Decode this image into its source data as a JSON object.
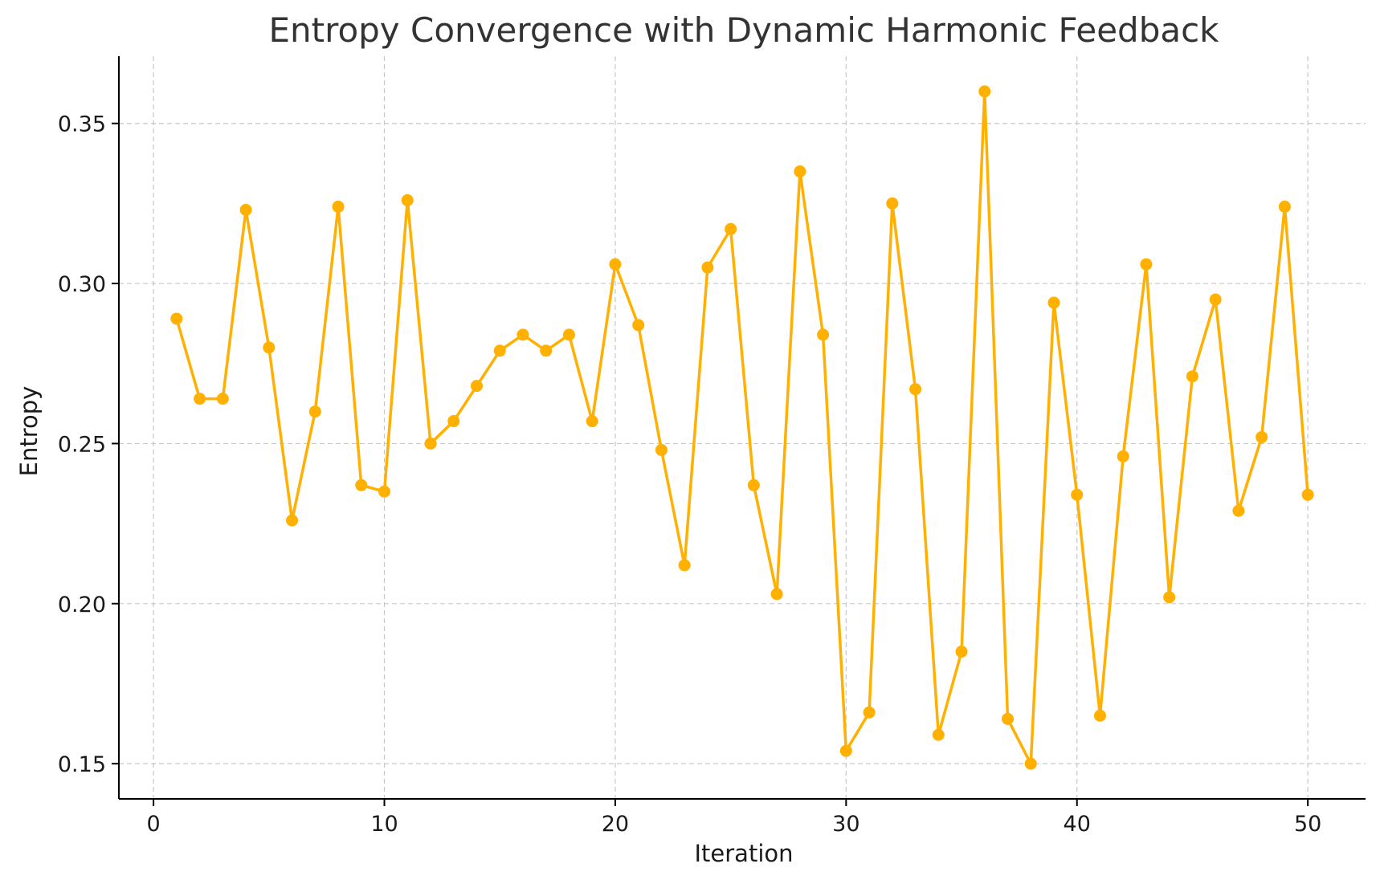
{
  "chart_data": {
    "type": "line",
    "title": "Entropy Convergence with Dynamic Harmonic Feedback",
    "xlabel": "Iteration",
    "ylabel": "Entropy",
    "xlim": [
      -1.5,
      52.5
    ],
    "ylim": [
      0.139,
      0.371
    ],
    "xticks": [
      0,
      10,
      20,
      30,
      40,
      50
    ],
    "xtick_labels": [
      "0",
      "10",
      "20",
      "30",
      "40",
      "50"
    ],
    "yticks": [
      0.15,
      0.2,
      0.25,
      0.3,
      0.35
    ],
    "ytick_labels": [
      "0.15",
      "0.20",
      "0.25",
      "0.30",
      "0.35"
    ],
    "grid": true,
    "series": [
      {
        "color": "#ffb000",
        "marker": "circle",
        "x": [
          1,
          2,
          3,
          4,
          5,
          6,
          7,
          8,
          9,
          10,
          11,
          12,
          13,
          14,
          15,
          16,
          17,
          18,
          19,
          20,
          21,
          22,
          23,
          24,
          25,
          26,
          27,
          28,
          29,
          30,
          31,
          32,
          33,
          34,
          35,
          36,
          37,
          38,
          39,
          40,
          41,
          42,
          43,
          44,
          45,
          46,
          47,
          48,
          49,
          50
        ],
        "values": [
          0.289,
          0.264,
          0.264,
          0.323,
          0.28,
          0.226,
          0.26,
          0.324,
          0.237,
          0.235,
          0.326,
          0.25,
          0.257,
          0.268,
          0.279,
          0.284,
          0.279,
          0.284,
          0.257,
          0.306,
          0.287,
          0.248,
          0.212,
          0.305,
          0.317,
          0.237,
          0.203,
          0.335,
          0.284,
          0.154,
          0.166,
          0.325,
          0.267,
          0.159,
          0.185,
          0.36,
          0.164,
          0.15,
          0.294,
          0.234,
          0.165,
          0.246,
          0.306,
          0.202,
          0.271,
          0.295,
          0.229,
          0.252,
          0.324,
          0.234
        ]
      }
    ]
  }
}
